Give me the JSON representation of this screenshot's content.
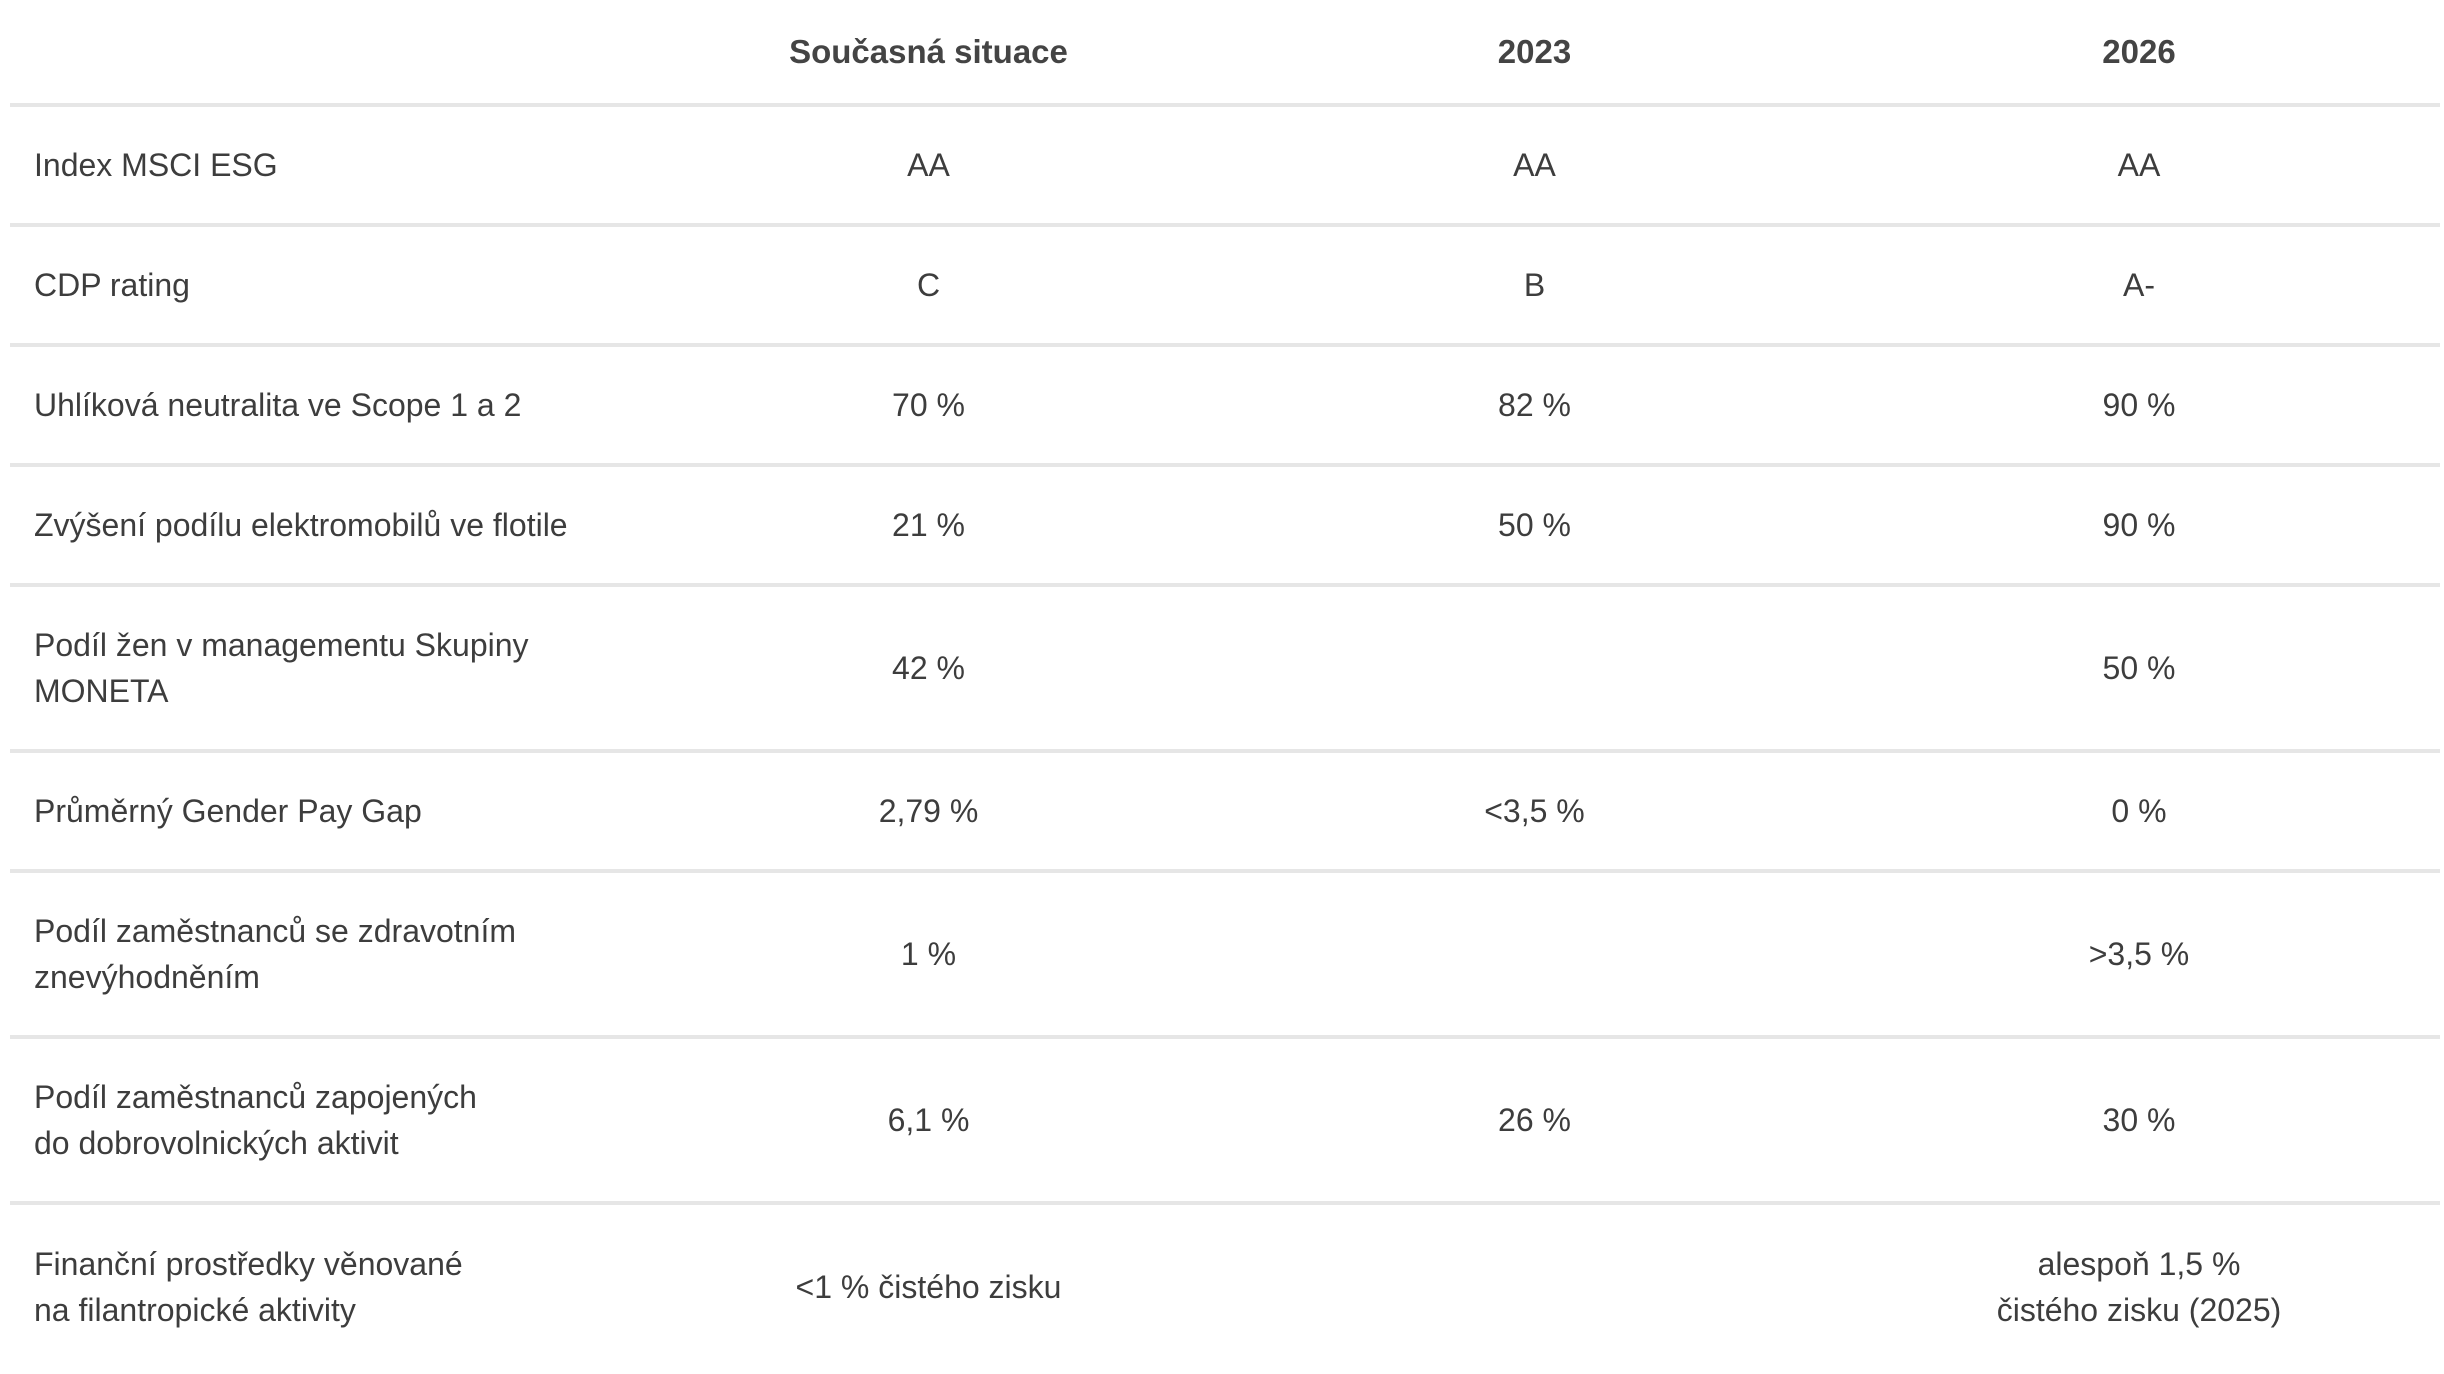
{
  "table": {
    "headers": [
      "",
      "Současná situace",
      "2023",
      "2026"
    ],
    "rows": [
      {
        "label": "Index MSCI ESG",
        "current": "AA",
        "y2023": "AA",
        "y2026": "AA"
      },
      {
        "label": "CDP rating",
        "current": "C",
        "y2023": "B",
        "y2026": "A-"
      },
      {
        "label": "Uhlíková neutralita ve Scope 1 a 2",
        "current": "70 %",
        "y2023": "82 %",
        "y2026": "90 %"
      },
      {
        "label": "Zvýšení podílu elektromobilů ve flotile",
        "current": "21 %",
        "y2023": "50 %",
        "y2026": "90 %"
      },
      {
        "label": "Podíl žen v managementu Skupiny\nMONETA",
        "current": "42 %",
        "y2023": "",
        "y2026": "50 %"
      },
      {
        "label": "Průměrný Gender Pay Gap",
        "current": "2,79 %",
        "y2023": "<3,5 %",
        "y2026": "0 %"
      },
      {
        "label": "Podíl zaměstnanců se zdravotním\nznevýhodněním",
        "current": "1 %",
        "y2023": "",
        "y2026": ">3,5 %"
      },
      {
        "label": "Podíl zaměstnanců zapojených\ndo dobrovolnických aktivit",
        "current": "6,1 %",
        "y2023": "26 %",
        "y2026": "30 %"
      },
      {
        "label": "Finanční prostředky věnované\nna filantropické aktivity",
        "current": "<1 % čistého zisku",
        "y2023": "",
        "y2026": "alespoň 1,5 %\nčistého zisku (2025)"
      }
    ]
  }
}
